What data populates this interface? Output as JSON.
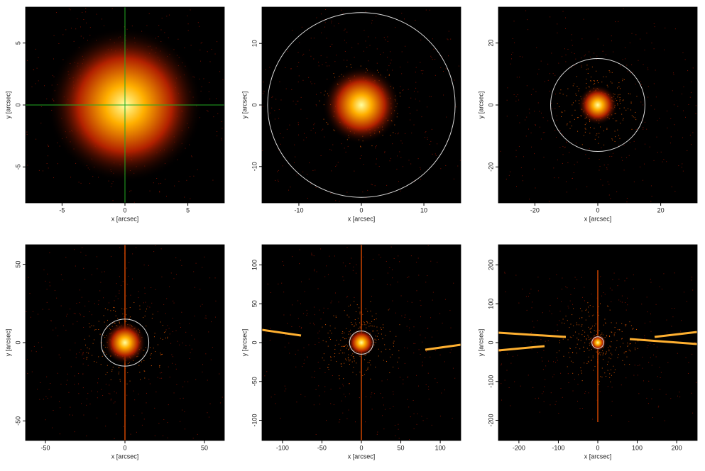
{
  "chart_data": [
    {
      "type": "image",
      "xlabel": "x [arcsec]",
      "ylabel": "y [arcsec]",
      "xlim": [
        -7.9,
        7.9
      ],
      "ylim": [
        -7.9,
        7.9
      ],
      "xticks": [
        -5,
        0,
        5
      ],
      "yticks": [
        -5,
        0,
        5
      ],
      "crosshair_color": "#22aa22",
      "circles": []
    },
    {
      "type": "image",
      "xlabel": "x [arcsec]",
      "ylabel": "y [arcsec]",
      "xlim": [
        -15.9,
        15.9
      ],
      "ylim": [
        -15.9,
        15.9
      ],
      "xticks": [
        -10,
        0,
        10
      ],
      "yticks": [
        -10,
        0,
        10
      ],
      "circles": [
        {
          "x": 0,
          "y": 0,
          "r": 15,
          "color": "#dddddd"
        }
      ]
    },
    {
      "type": "image",
      "xlabel": "x [arcsec]",
      "ylabel": "y [arcsec]",
      "xlim": [
        -31.6,
        31.6
      ],
      "ylim": [
        -31.6,
        31.6
      ],
      "xticks": [
        -20,
        0,
        20
      ],
      "yticks": [
        -20,
        0,
        20
      ],
      "circles": [
        {
          "x": 0,
          "y": 0,
          "r": 15,
          "color": "#dddddd"
        }
      ]
    },
    {
      "type": "image",
      "xlabel": "x [arcsec]",
      "ylabel": "y [arcsec]",
      "xlim": [
        -62.5,
        62.5
      ],
      "ylim": [
        -62.5,
        62.5
      ],
      "xticks": [
        -50,
        0,
        50
      ],
      "yticks": [
        -50,
        0,
        50
      ],
      "circles": [
        {
          "x": 0,
          "y": 0,
          "r": 15,
          "color": "#dddddd"
        }
      ]
    },
    {
      "type": "image",
      "xlabel": "x [arcsec]",
      "ylabel": "y [arcsec]",
      "xlim": [
        -126,
        126
      ],
      "ylim": [
        -126,
        126
      ],
      "xticks": [
        -100,
        -50,
        0,
        50,
        100
      ],
      "yticks": [
        -100,
        -50,
        0,
        50,
        100
      ],
      "circles": [
        {
          "x": 0,
          "y": 0,
          "r": 15,
          "color": "#dddddd"
        }
      ]
    },
    {
      "type": "image",
      "xlabel": "x [arcsec]",
      "ylabel": "y [arcsec]",
      "xlim": [
        -252,
        252
      ],
      "ylim": [
        -252,
        252
      ],
      "xticks": [
        -200,
        -100,
        0,
        100,
        200
      ],
      "yticks": [
        -200,
        -100,
        0,
        100,
        200
      ],
      "circles": [
        {
          "x": 0,
          "y": 0,
          "r": 15,
          "color": "#dddddd"
        }
      ]
    }
  ]
}
